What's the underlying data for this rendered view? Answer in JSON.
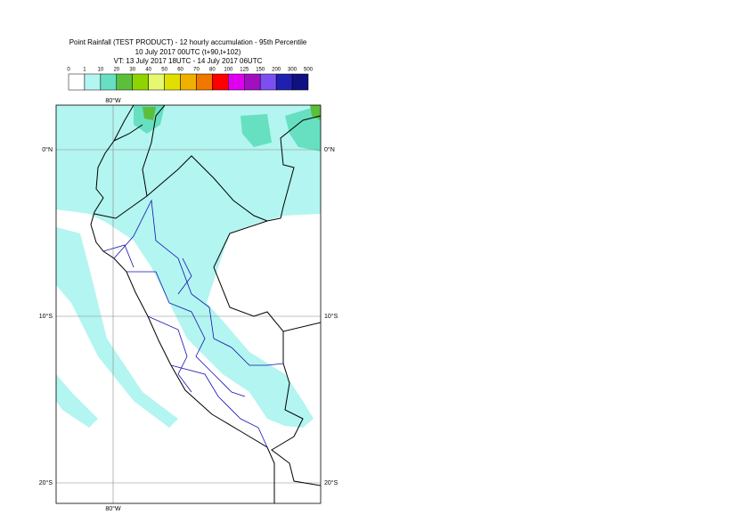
{
  "header": {
    "title": "Point Rainfall (TEST PRODUCT) - 12 hourly accumulation - 95th Percentile",
    "run": "10 July 2017 00UTC (t+90,t+102)",
    "validity": "VT: 13 July 2017 18UTC - 14 July 2017 06UTC"
  },
  "legend": {
    "labels": [
      0,
      1,
      10,
      20,
      30,
      40,
      50,
      60,
      70,
      80,
      100,
      125,
      150,
      200,
      300,
      500
    ],
    "colors": [
      "#ffffff",
      "#b3f5f0",
      "#66e0c0",
      "#5cbf3c",
      "#8fd400",
      "#e6f870",
      "#e0e000",
      "#f0b000",
      "#f07800",
      "#ff0000",
      "#e000f0",
      "#a010c0",
      "#7c50f0",
      "#2020b0",
      "#101080"
    ]
  },
  "map": {
    "lon_label_top": "80°W",
    "lon_label_bottom": "80°W",
    "lat_labels": [
      "0°N",
      "10°S",
      "20°S"
    ]
  }
}
